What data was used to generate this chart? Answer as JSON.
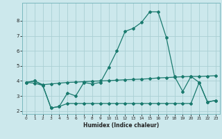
{
  "xlabel": "Humidex (Indice chaleur)",
  "bg_color": "#cce8ec",
  "grid_color": "#aacfd4",
  "line_color": "#1a7a6e",
  "x": [
    0,
    1,
    2,
    3,
    4,
    5,
    6,
    7,
    8,
    9,
    10,
    11,
    12,
    13,
    14,
    15,
    16,
    17,
    18,
    19,
    20,
    21,
    22,
    23
  ],
  "series1": [
    3.9,
    4.0,
    3.7,
    2.2,
    2.3,
    3.2,
    3.0,
    3.9,
    3.8,
    3.9,
    4.9,
    6.0,
    7.3,
    7.5,
    7.9,
    8.6,
    8.6,
    6.9,
    4.3,
    3.3,
    4.3,
    3.9,
    2.6,
    2.7
  ],
  "series2": [
    3.9,
    4.0,
    3.75,
    3.8,
    3.85,
    3.9,
    3.92,
    3.95,
    3.98,
    4.0,
    4.02,
    4.05,
    4.08,
    4.1,
    4.12,
    4.15,
    4.2,
    4.22,
    4.25,
    4.28,
    4.3,
    4.3,
    4.32,
    4.35
  ],
  "series3": [
    3.9,
    3.85,
    3.7,
    2.2,
    2.3,
    2.5,
    2.5,
    2.5,
    2.5,
    2.5,
    2.5,
    2.5,
    2.5,
    2.5,
    2.5,
    2.5,
    2.5,
    2.5,
    2.5,
    2.5,
    2.5,
    3.9,
    2.6,
    2.7
  ],
  "ylim": [
    1.8,
    9.2
  ],
  "xlim": [
    -0.5,
    23.5
  ],
  "yticks": [
    2,
    3,
    4,
    5,
    6,
    7,
    8
  ],
  "xticks": [
    0,
    1,
    2,
    3,
    4,
    5,
    6,
    7,
    8,
    9,
    10,
    11,
    12,
    13,
    14,
    15,
    16,
    17,
    18,
    19,
    20,
    21,
    22,
    23
  ]
}
